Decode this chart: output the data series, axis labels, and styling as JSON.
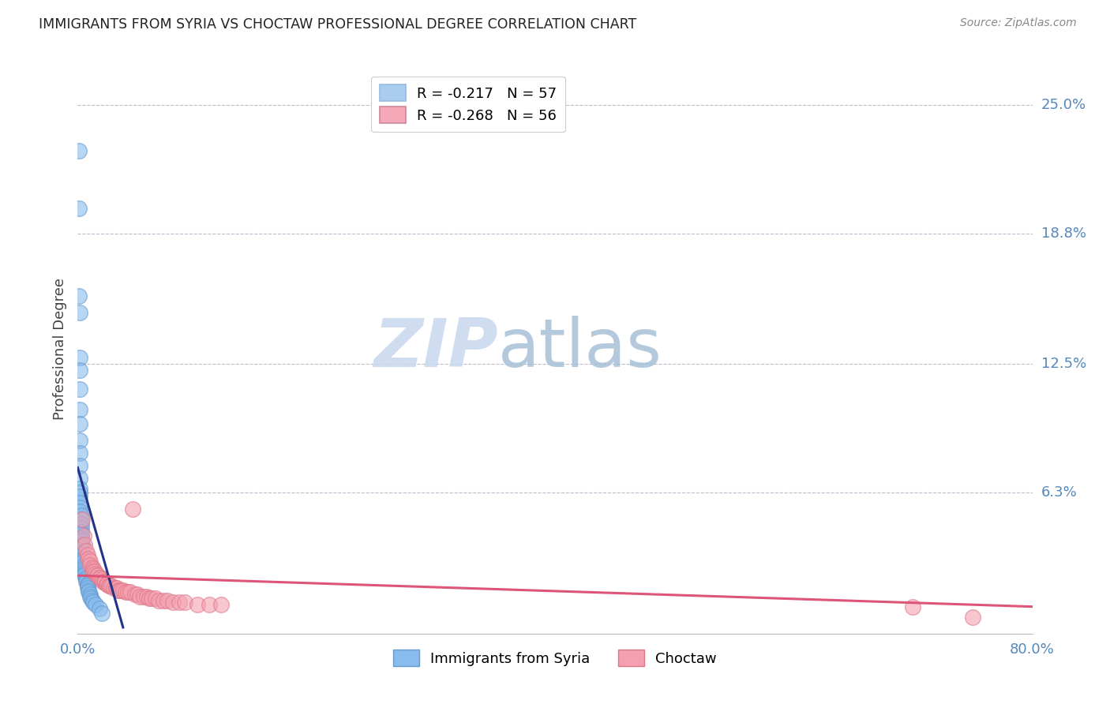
{
  "title": "IMMIGRANTS FROM SYRIA VS CHOCTAW PROFESSIONAL DEGREE CORRELATION CHART",
  "source": "Source: ZipAtlas.com",
  "ylabel": "Professional Degree",
  "right_yticks": [
    "25.0%",
    "18.8%",
    "12.5%",
    "6.3%"
  ],
  "right_ytick_vals": [
    0.25,
    0.188,
    0.125,
    0.063
  ],
  "xlim": [
    0.0,
    0.8
  ],
  "ylim": [
    -0.005,
    0.27
  ],
  "watermark_zip": "ZIP",
  "watermark_atlas": "atlas",
  "legend_items": [
    {
      "label": "R = -0.217   N = 57",
      "color": "#aaccee"
    },
    {
      "label": "R = -0.268   N = 56",
      "color": "#f4a8b8"
    }
  ],
  "syria_color": "#88bbee",
  "syria_edge": "#6699cc",
  "choctaw_color": "#f4a0b0",
  "choctaw_edge": "#dd7788",
  "syria_line_color": "#223388",
  "choctaw_line_color": "#dd5577",
  "syria_scatter": [
    [
      0.001,
      0.228
    ],
    [
      0.001,
      0.2
    ],
    [
      0.001,
      0.158
    ],
    [
      0.002,
      0.15
    ],
    [
      0.002,
      0.128
    ],
    [
      0.002,
      0.122
    ],
    [
      0.002,
      0.113
    ],
    [
      0.002,
      0.103
    ],
    [
      0.002,
      0.096
    ],
    [
      0.002,
      0.088
    ],
    [
      0.002,
      0.082
    ],
    [
      0.002,
      0.076
    ],
    [
      0.002,
      0.07
    ],
    [
      0.002,
      0.065
    ],
    [
      0.002,
      0.063
    ],
    [
      0.002,
      0.061
    ],
    [
      0.002,
      0.058
    ],
    [
      0.002,
      0.056
    ],
    [
      0.002,
      0.054
    ],
    [
      0.003,
      0.052
    ],
    [
      0.003,
      0.05
    ],
    [
      0.003,
      0.048
    ],
    [
      0.003,
      0.046
    ],
    [
      0.003,
      0.044
    ],
    [
      0.003,
      0.043
    ],
    [
      0.003,
      0.041
    ],
    [
      0.004,
      0.04
    ],
    [
      0.004,
      0.038
    ],
    [
      0.004,
      0.037
    ],
    [
      0.004,
      0.036
    ],
    [
      0.004,
      0.034
    ],
    [
      0.004,
      0.033
    ],
    [
      0.005,
      0.032
    ],
    [
      0.005,
      0.031
    ],
    [
      0.005,
      0.03
    ],
    [
      0.005,
      0.028
    ],
    [
      0.005,
      0.027
    ],
    [
      0.006,
      0.026
    ],
    [
      0.006,
      0.025
    ],
    [
      0.006,
      0.024
    ],
    [
      0.006,
      0.023
    ],
    [
      0.007,
      0.022
    ],
    [
      0.007,
      0.021
    ],
    [
      0.007,
      0.02
    ],
    [
      0.008,
      0.019
    ],
    [
      0.008,
      0.018
    ],
    [
      0.008,
      0.017
    ],
    [
      0.009,
      0.016
    ],
    [
      0.009,
      0.015
    ],
    [
      0.01,
      0.014
    ],
    [
      0.01,
      0.013
    ],
    [
      0.011,
      0.012
    ],
    [
      0.012,
      0.011
    ],
    [
      0.013,
      0.01
    ],
    [
      0.015,
      0.009
    ],
    [
      0.018,
      0.007
    ],
    [
      0.02,
      0.005
    ]
  ],
  "choctaw_scatter": [
    [
      0.004,
      0.05
    ],
    [
      0.005,
      0.042
    ],
    [
      0.006,
      0.038
    ],
    [
      0.007,
      0.035
    ],
    [
      0.008,
      0.033
    ],
    [
      0.009,
      0.031
    ],
    [
      0.01,
      0.03
    ],
    [
      0.01,
      0.028
    ],
    [
      0.012,
      0.027
    ],
    [
      0.013,
      0.026
    ],
    [
      0.013,
      0.025
    ],
    [
      0.014,
      0.025
    ],
    [
      0.015,
      0.024
    ],
    [
      0.016,
      0.023
    ],
    [
      0.017,
      0.023
    ],
    [
      0.018,
      0.022
    ],
    [
      0.019,
      0.022
    ],
    [
      0.02,
      0.021
    ],
    [
      0.021,
      0.02
    ],
    [
      0.022,
      0.02
    ],
    [
      0.023,
      0.02
    ],
    [
      0.024,
      0.019
    ],
    [
      0.025,
      0.019
    ],
    [
      0.026,
      0.018
    ],
    [
      0.027,
      0.018
    ],
    [
      0.028,
      0.018
    ],
    [
      0.03,
      0.017
    ],
    [
      0.032,
      0.017
    ],
    [
      0.033,
      0.017
    ],
    [
      0.034,
      0.016
    ],
    [
      0.035,
      0.016
    ],
    [
      0.036,
      0.016
    ],
    [
      0.038,
      0.016
    ],
    [
      0.04,
      0.015
    ],
    [
      0.042,
      0.015
    ],
    [
      0.044,
      0.015
    ],
    [
      0.046,
      0.055
    ],
    [
      0.048,
      0.014
    ],
    [
      0.05,
      0.014
    ],
    [
      0.052,
      0.013
    ],
    [
      0.055,
      0.013
    ],
    [
      0.058,
      0.013
    ],
    [
      0.06,
      0.012
    ],
    [
      0.062,
      0.012
    ],
    [
      0.065,
      0.012
    ],
    [
      0.068,
      0.011
    ],
    [
      0.072,
      0.011
    ],
    [
      0.075,
      0.011
    ],
    [
      0.08,
      0.01
    ],
    [
      0.085,
      0.01
    ],
    [
      0.09,
      0.01
    ],
    [
      0.1,
      0.009
    ],
    [
      0.11,
      0.009
    ],
    [
      0.12,
      0.009
    ],
    [
      0.7,
      0.008
    ],
    [
      0.75,
      0.003
    ]
  ],
  "syria_trendline_x": [
    0.0,
    0.038
  ],
  "syria_trendline_y": [
    0.075,
    -0.002
  ],
  "choctaw_trendline_x": [
    0.0,
    0.8
  ],
  "choctaw_trendline_y": [
    0.023,
    0.008
  ]
}
